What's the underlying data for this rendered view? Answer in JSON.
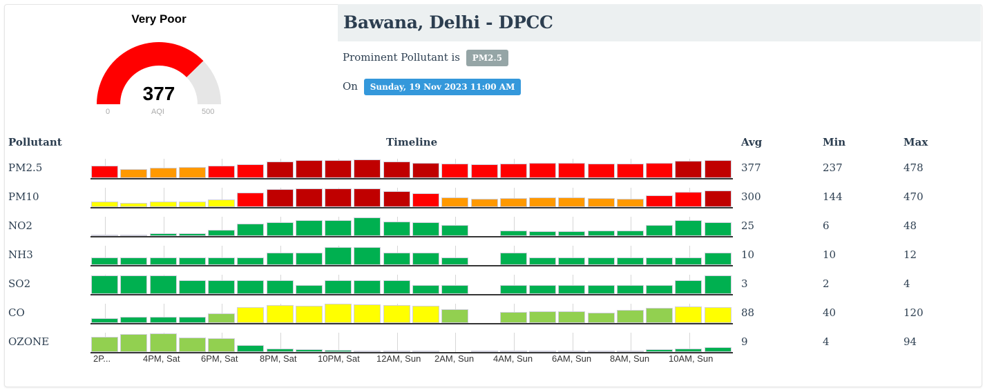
{
  "gauge": {
    "category": "Very Poor",
    "value": "377",
    "min_label": "0",
    "unit_label": "AQI",
    "max_label": "500",
    "value_num": 377,
    "max_num": 500,
    "fill_color": "#ff0000",
    "track_color": "#e6e6e6"
  },
  "station": {
    "title": "Bawana, Delhi - DPCC",
    "prominent_prefix": "Prominent Pollutant is",
    "prominent_pollutant": "PM2.5",
    "on_prefix": "On",
    "datetime": "Sunday, 19 Nov 2023 11:00 AM"
  },
  "table": {
    "headers": {
      "pollutant": "Pollutant",
      "timeline": "Timeline",
      "avg": "Avg",
      "min": "Min",
      "max": "Max"
    },
    "rows": [
      {
        "name": "PM2.5",
        "avg": "377",
        "min": "237",
        "max": "478"
      },
      {
        "name": "PM10",
        "avg": "300",
        "min": "144",
        "max": "470"
      },
      {
        "name": "NO2",
        "avg": "25",
        "min": "6",
        "max": "48"
      },
      {
        "name": "NH3",
        "avg": "10",
        "min": "10",
        "max": "12"
      },
      {
        "name": "SO2",
        "avg": "3",
        "min": "2",
        "max": "4"
      },
      {
        "name": "CO",
        "avg": "88",
        "min": "40",
        "max": "120"
      },
      {
        "name": "OZONE",
        "avg": "9",
        "min": "4",
        "max": "94"
      }
    ]
  },
  "colors": {
    "good": "#00b050",
    "satisfactory": "#92d050",
    "moderate": "#ffff00",
    "poor": "#ff9900",
    "very_poor": "#ff0000",
    "severe": "#c00000"
  },
  "chart_data": {
    "type": "bar",
    "title": "Timeline",
    "x_tick_labels": [
      "2P...",
      "4PM, Sat",
      "6PM, Sat",
      "8PM, Sat",
      "10PM, Sat",
      "12AM, Sun",
      "2AM, Sun",
      "4AM, Sun",
      "6AM, Sun",
      "8AM, Sun",
      "10AM, Sun"
    ],
    "slots": 22,
    "legend_position": "none",
    "grid": false,
    "series": [
      {
        "name": "PM2.5",
        "heights": [
          18,
          13,
          15,
          16,
          18,
          20,
          24,
          26,
          26,
          27,
          24,
          22,
          21,
          20,
          21,
          22,
          22,
          21,
          21,
          22,
          25,
          26
        ],
        "colors": [
          "very_poor",
          "poor",
          "poor",
          "poor",
          "very_poor",
          "very_poor",
          "severe",
          "severe",
          "severe",
          "severe",
          "severe",
          "severe",
          "very_poor",
          "very_poor",
          "very_poor",
          "very_poor",
          "very_poor",
          "very_poor",
          "very_poor",
          "very_poor",
          "severe",
          "severe"
        ]
      },
      {
        "name": "PM10",
        "heights": [
          8,
          6,
          8,
          8,
          11,
          21,
          26,
          27,
          27,
          27,
          23,
          20,
          14,
          12,
          13,
          14,
          14,
          13,
          12,
          17,
          22,
          24
        ],
        "colors": [
          "moderate",
          "moderate",
          "moderate",
          "moderate",
          "moderate",
          "very_poor",
          "severe",
          "severe",
          "severe",
          "severe",
          "severe",
          "very_poor",
          "poor",
          "poor",
          "poor",
          "poor",
          "poor",
          "poor",
          "poor",
          "very_poor",
          "very_poor",
          "severe"
        ]
      },
      {
        "name": "NO2",
        "heights": [
          2,
          2,
          4,
          4,
          9,
          18,
          20,
          23,
          23,
          27,
          21,
          20,
          16,
          0,
          8,
          7,
          7,
          8,
          8,
          16,
          23,
          20
        ],
        "colors": [
          "good",
          "good",
          "good",
          "good",
          "good",
          "good",
          "good",
          "good",
          "good",
          "good",
          "good",
          "good",
          "good",
          "good",
          "good",
          "good",
          "good",
          "good",
          "good",
          "good",
          "good",
          "good"
        ]
      },
      {
        "name": "NH3",
        "heights": [
          11,
          11,
          11,
          11,
          11,
          11,
          18,
          18,
          26,
          26,
          18,
          18,
          11,
          0,
          18,
          11,
          11,
          11,
          11,
          11,
          11,
          18
        ],
        "colors": [
          "good",
          "good",
          "good",
          "good",
          "good",
          "good",
          "good",
          "good",
          "good",
          "good",
          "good",
          "good",
          "good",
          "good",
          "good",
          "good",
          "good",
          "good",
          "good",
          "good",
          "good",
          "good"
        ]
      },
      {
        "name": "SO2",
        "heights": [
          27,
          27,
          27,
          20,
          20,
          20,
          20,
          13,
          20,
          20,
          20,
          13,
          13,
          0,
          13,
          13,
          13,
          13,
          13,
          13,
          20,
          27
        ],
        "colors": [
          "good",
          "good",
          "good",
          "good",
          "good",
          "good",
          "good",
          "good",
          "good",
          "good",
          "good",
          "good",
          "good",
          "good",
          "good",
          "good",
          "good",
          "good",
          "good",
          "good",
          "good",
          "good"
        ]
      },
      {
        "name": "CO",
        "heights": [
          7,
          9,
          9,
          9,
          14,
          23,
          26,
          25,
          28,
          27,
          26,
          25,
          20,
          0,
          16,
          17,
          17,
          15,
          19,
          22,
          24,
          23
        ],
        "colors": [
          "good",
          "good",
          "good",
          "good",
          "satisfactory",
          "moderate",
          "moderate",
          "moderate",
          "moderate",
          "moderate",
          "moderate",
          "moderate",
          "satisfactory",
          "satisfactory",
          "satisfactory",
          "satisfactory",
          "satisfactory",
          "satisfactory",
          "satisfactory",
          "satisfactory",
          "moderate",
          "moderate"
        ]
      },
      {
        "name": "OZONE",
        "heights": [
          22,
          26,
          27,
          21,
          20,
          10,
          5,
          4,
          3,
          2,
          2,
          1,
          0,
          1,
          1,
          1,
          1,
          1,
          1,
          4,
          5,
          7
        ],
        "colors": [
          "satisfactory",
          "satisfactory",
          "satisfactory",
          "satisfactory",
          "satisfactory",
          "good",
          "good",
          "good",
          "good",
          "good",
          "good",
          "good",
          "good",
          "good",
          "good",
          "good",
          "good",
          "good",
          "good",
          "good",
          "good",
          "good"
        ]
      }
    ],
    "summary": [
      {
        "pollutant": "PM2.5",
        "avg": 377,
        "min": 237,
        "max": 478
      },
      {
        "pollutant": "PM10",
        "avg": 300,
        "min": 144,
        "max": 470
      },
      {
        "pollutant": "NO2",
        "avg": 25,
        "min": 6,
        "max": 48
      },
      {
        "pollutant": "NH3",
        "avg": 10,
        "min": 10,
        "max": 12
      },
      {
        "pollutant": "SO2",
        "avg": 3,
        "min": 2,
        "max": 4
      },
      {
        "pollutant": "CO",
        "avg": 88,
        "min": 40,
        "max": 120
      },
      {
        "pollutant": "OZONE",
        "avg": 9,
        "min": 4,
        "max": 94
      }
    ]
  }
}
